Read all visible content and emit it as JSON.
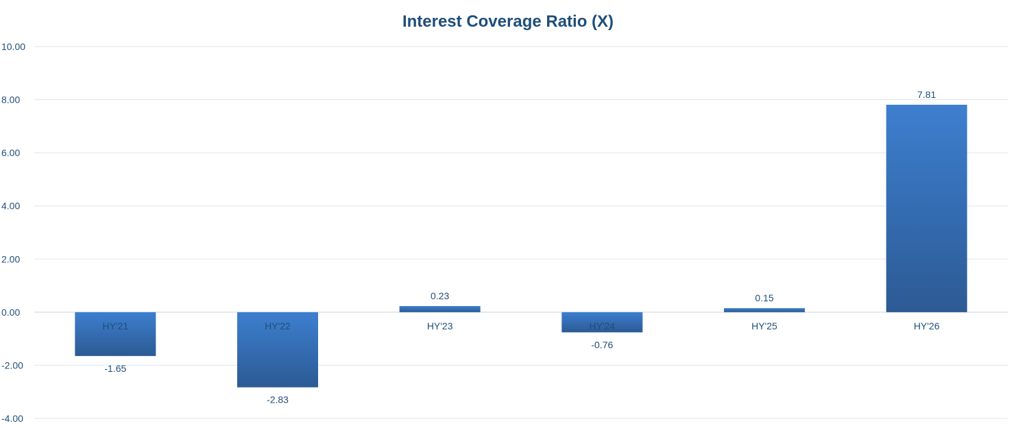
{
  "chart_data": {
    "type": "bar",
    "title": "Interest Coverage Ratio (X)",
    "xlabel": "",
    "ylabel": "",
    "categories": [
      "HY'21",
      "HY'22",
      "HY'23",
      "HY'24",
      "HY'25",
      "HY'26"
    ],
    "values": [
      -1.65,
      -2.83,
      0.23,
      -0.76,
      0.15,
      7.81
    ],
    "data_labels": [
      "-1.65",
      "-2.83",
      "0.23",
      "-0.76",
      "0.15",
      "7.81"
    ],
    "ylim": [
      -4,
      10
    ],
    "yticks": [
      10,
      8,
      6,
      4,
      2,
      0,
      -2,
      -4
    ],
    "ytick_labels": [
      "10.00",
      "8.00",
      "6.00",
      "4.00",
      "2.00",
      "0.00",
      "-2.00",
      "-4.00"
    ],
    "grid": true,
    "legend": "none",
    "bar_color_top": "#3d7fcf",
    "bar_color_bottom": "#2c5a94",
    "text_color": "#1f4e79"
  }
}
